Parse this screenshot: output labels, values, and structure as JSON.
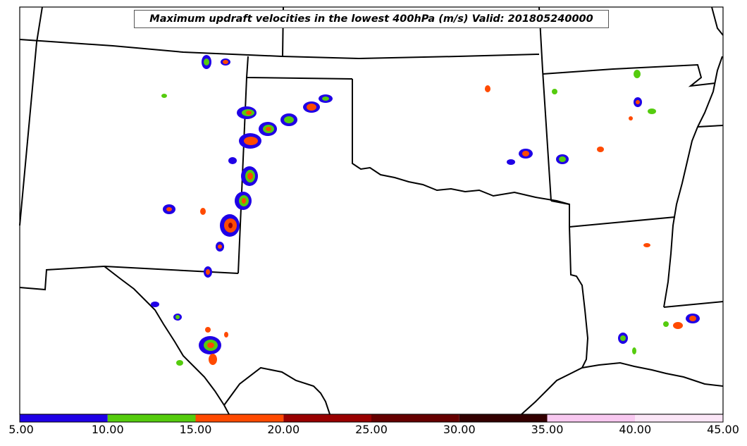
{
  "title": "Maximum updraft velocities in the lowest 400hPa (m/s) Valid: 201805240000",
  "colorbar": {
    "min": 5,
    "max": 45,
    "bins": [
      {
        "from": 5,
        "to": 10,
        "color": "#1f00e6"
      },
      {
        "from": 10,
        "to": 15,
        "color": "#55cc0e"
      },
      {
        "from": 15,
        "to": 20,
        "color": "#ff4a00"
      },
      {
        "from": 20,
        "to": 25,
        "color": "#990000"
      },
      {
        "from": 25,
        "to": 30,
        "color": "#660000"
      },
      {
        "from": 30,
        "to": 35,
        "color": "#330000"
      },
      {
        "from": 35,
        "to": 40,
        "color": "#f8c8f0"
      },
      {
        "from": 40,
        "to": 45,
        "color": "#fbe6f7"
      }
    ],
    "ticks": [
      "5.00",
      "10.00",
      "15.00",
      "20.00",
      "25.00",
      "30.00",
      "35.00",
      "40.00",
      "45.00"
    ]
  },
  "colors": {
    "weak": "#1f00e6",
    "moderate": "#55cc0e",
    "strong": "#ff4a00",
    "intense": "#990000"
  }
}
